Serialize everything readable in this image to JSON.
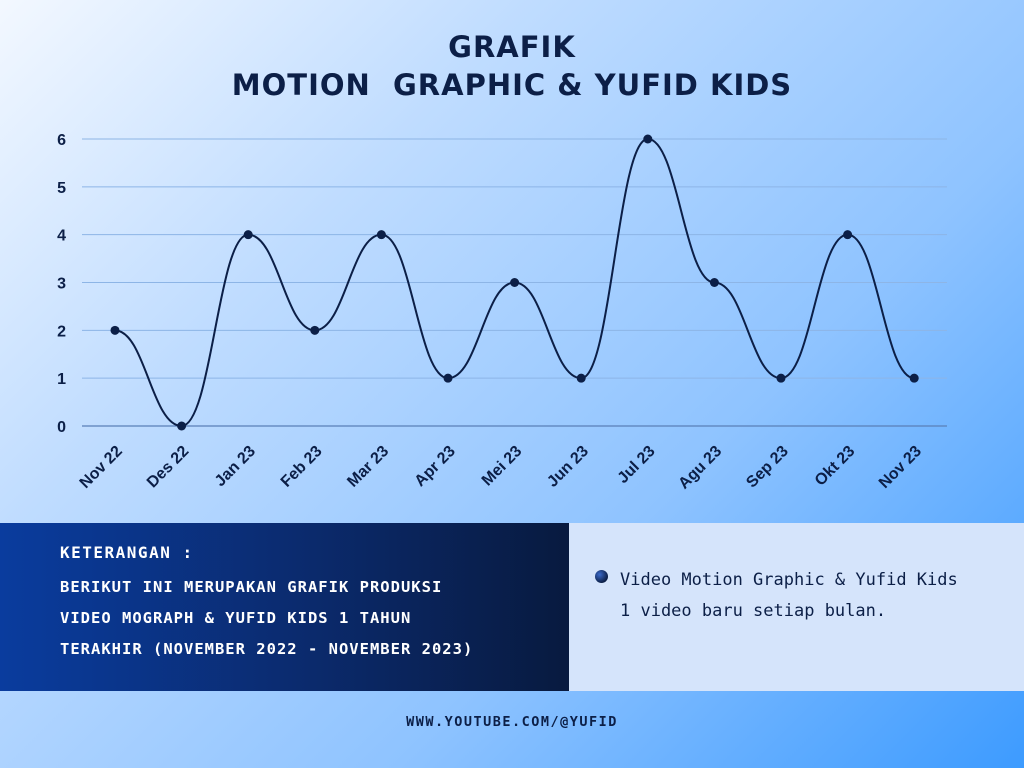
{
  "title_lines": [
    "GRAFIK",
    "MOTION  GRAPHIC & YUFID KIDS"
  ],
  "chart_data": {
    "type": "line",
    "title": "GRAFIK MOTION  GRAPHIC & YUFID KIDS",
    "categories": [
      "Nov 22",
      "Des 22",
      "Jan 23",
      "Feb 23",
      "Mar 23",
      "Apr 23",
      "Mei 23",
      "Jun 23",
      "Jul 23",
      "Agu 23",
      "Sep 23",
      "Okt 23",
      "Nov 23"
    ],
    "series": [
      {
        "values": [
          2,
          0,
          4,
          2,
          4,
          1,
          3,
          1,
          6,
          3,
          1,
          4,
          1
        ]
      }
    ],
    "yticks": [
      "0",
      "1",
      "2",
      "3",
      "4",
      "5",
      "6"
    ],
    "ylim": [
      0,
      6
    ],
    "grid": "horizontal",
    "smooth": true,
    "line_color": "#0c1f47"
  },
  "keterangan": {
    "title": "KETERANGAN :",
    "description_lines": [
      "BERIKUT INI MERUPAKAN GRAFIK PRODUKSI",
      "VIDEO MOGRAPH & YUFID KIDS 1 TAHUN",
      "TERAKHIR (NOVEMBER 2022 - NOVEMBER 2023)"
    ]
  },
  "legend": {
    "lines": [
      "Video Motion Graphic & Yufid Kids",
      "1 video baru setiap bulan."
    ]
  },
  "footer": "WWW.YOUTUBE.COM/@YUFID"
}
